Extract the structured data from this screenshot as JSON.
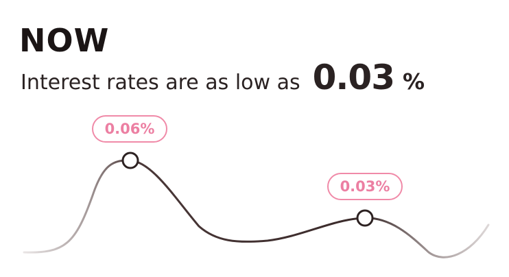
{
  "header": {
    "title": "NOW",
    "subtitle": "Interest rates are as low as",
    "rate_value": "0.03",
    "rate_unit": "%"
  },
  "graph": {
    "markers": [
      {
        "label": "0.06%"
      },
      {
        "label": "0.03%"
      }
    ],
    "colors": {
      "line_dark": "#3a2a2a",
      "line_fade": "#d6d0d0",
      "accent": "#f08aa8"
    }
  }
}
